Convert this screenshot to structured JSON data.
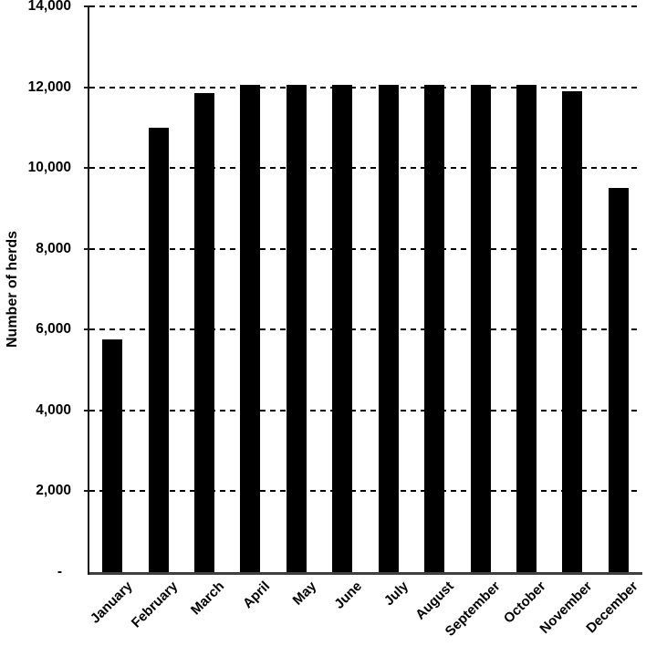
{
  "chart_data": {
    "type": "bar",
    "title": "",
    "xlabel": "",
    "ylabel": "Number of herds",
    "categories": [
      "January",
      "February",
      "March",
      "April",
      "May",
      "June",
      "July",
      "August",
      "September",
      "October",
      "November",
      "December"
    ],
    "values": [
      5750,
      11000,
      11850,
      12050,
      12050,
      12050,
      12050,
      12050,
      12050,
      12050,
      11900,
      9500
    ],
    "ylim": [
      0,
      14000
    ],
    "ytick_step": 2000,
    "y_ticks": [
      {
        "value": 0,
        "label": "-"
      },
      {
        "value": 2000,
        "label": "2,000"
      },
      {
        "value": 4000,
        "label": "4,000"
      },
      {
        "value": 6000,
        "label": "6,000"
      },
      {
        "value": 8000,
        "label": "8,000"
      },
      {
        "value": 10000,
        "label": "10,000"
      },
      {
        "value": 12000,
        "label": "12,000"
      },
      {
        "value": 14000,
        "label": "14,000"
      }
    ],
    "grid": {
      "horizontal": true,
      "style": "dashed"
    },
    "legend_position": "none",
    "x_label_rotation_deg": 45,
    "bar_color": "#000000",
    "grid_color": "#000000",
    "axis_color": "#404040"
  }
}
